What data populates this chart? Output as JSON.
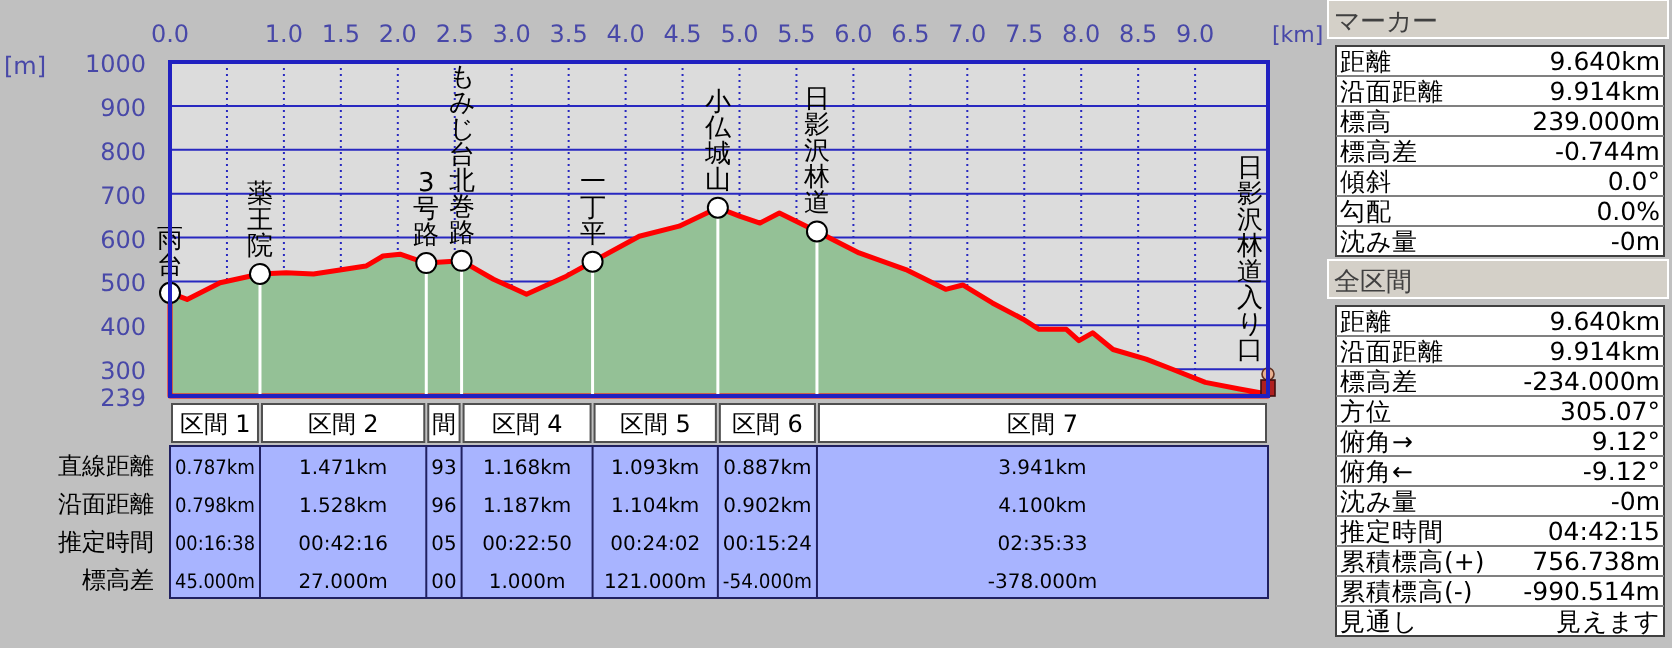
{
  "chart_data": [
    {
      "type": "area",
      "xlabel": "[km]",
      "ylabel": "[m]",
      "grid": true,
      "x": [
        0,
        0.15,
        0.44,
        0.79,
        1.02,
        1.26,
        1.52,
        1.72,
        1.87,
        2.02,
        2.25,
        2.56,
        2.84,
        3.13,
        3.48,
        3.71,
        4.12,
        4.47,
        4.81,
        5.0,
        5.18,
        5.35,
        5.68,
        6.05,
        6.46,
        6.81,
        6.96,
        7.22,
        7.49,
        7.63,
        7.87,
        7.98,
        8.1,
        8.28,
        8.57,
        8.8,
        9.09,
        9.39,
        9.62,
        9.64
      ],
      "series": [
        {
          "color": "#ff0000",
          "values": [
            474,
            459,
            497,
            517,
            520,
            517,
            527,
            535,
            558,
            562,
            542,
            547,
            505,
            471,
            512,
            545,
            603,
            626,
            668,
            649,
            633,
            656,
            614,
            565,
            527,
            482,
            492,
            451,
            414,
            391,
            391,
            365,
            383,
            345,
            323,
            300,
            270,
            255,
            244,
            239
          ]
        }
      ],
      "xlim": [
        0,
        9.64
      ],
      "ylim": [
        239,
        1000
      ],
      "xticks": [
        {
          "value": 0,
          "label": "0.0"
        },
        {
          "value": 0.5,
          "label": null
        },
        {
          "value": 1,
          "label": "1.0"
        },
        1.5,
        {
          "value": 2,
          "label": "2.0"
        },
        2.5,
        {
          "value": 3,
          "label": "3.0"
        },
        3.5,
        {
          "value": 4,
          "label": "4.0"
        },
        4.5,
        {
          "value": 5,
          "label": "5.0"
        },
        5.5,
        {
          "value": 6,
          "label": "6.0"
        },
        6.5,
        {
          "value": 7,
          "label": "7.0"
        },
        7.5,
        {
          "value": 8,
          "label": "8.0"
        },
        8.5,
        {
          "value": 9,
          "label": "9.0"
        }
      ],
      "yticks": [
        239,
        300,
        400,
        500,
        600,
        700,
        800,
        900,
        1000
      ],
      "annotations": [
        {
          "text": "雨台",
          "x": 0,
          "y": 474
        },
        {
          "text": "薬王院",
          "x": 0.79,
          "y": 517
        },
        {
          "text": "3号路",
          "x": 2.25,
          "y": 542
        },
        {
          "text": "もみじ台北巻路",
          "x": 2.56,
          "y": 547
        },
        {
          "text": "一丁平",
          "x": 3.71,
          "y": 545
        },
        {
          "text": "小仏城山",
          "x": 4.81,
          "y": 668
        },
        {
          "text": "日影沢林道",
          "x": 5.68,
          "y": 614
        },
        {
          "text": "日影沢林道入り口",
          "x": 9.64,
          "y": 239
        }
      ]
    },
    {
      "type": "other",
      "categories": [
        "区間 1",
        "区間 2",
        "間",
        "区間 4",
        "区間 5",
        "区間 6",
        "区間 7"
      ],
      "annotations": [
        "直線距離",
        "沿面距離",
        "推定時間",
        "標高差",
        "0.787km",
        "1.471km",
        "93",
        "1.168km",
        "1.093km",
        "0.887km",
        "3.941km",
        "0.798km",
        "1.528km",
        "96",
        "1.187km",
        "1.104km",
        "0.902km",
        "4.100km",
        "00:16:38",
        "00:42:16",
        "05",
        "00:22:50",
        "00:24:02",
        "00:15:24",
        "02:35:33",
        "45.000m",
        "27.000m",
        "00",
        "1.000m",
        "121.000m",
        "-54.000m",
        "-378.000m"
      ]
    },
    {
      "type": "other",
      "title": "マーカー",
      "annotations": [
        "距離",
        "9.640km",
        "沿面距離",
        "9.914km",
        "標高",
        "239.000m",
        "標高差",
        "-0.744m",
        "傾斜",
        "0.0°",
        "勾配",
        "0.0%",
        "沈み量",
        "-0m"
      ]
    },
    {
      "type": "other",
      "title": "全区間",
      "annotations": [
        "距離",
        "9.640km",
        "沿面距離",
        "9.914km",
        "標高差",
        "-234.000m",
        "方位",
        "305.07°",
        "俯角→",
        "9.12°",
        "俯角←",
        "-9.12°",
        "沈み量",
        "-0m",
        "推定時間",
        "04:42:15",
        "累積標高(+)",
        "756.738m",
        "累積標高(-)",
        "-990.514m",
        "見通し",
        "見えます"
      ]
    }
  ]
}
